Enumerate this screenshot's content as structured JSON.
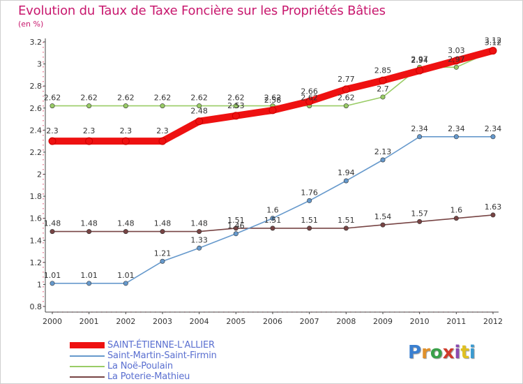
{
  "title": "Evolution du Taux de Taxe Foncière sur les Propriétés Bâties",
  "unit_label": "(en %)",
  "logo": {
    "text": "Proxiti",
    "colors": [
      "#3a7fd0",
      "#e0902a",
      "#3aa04a",
      "#d03a2a",
      "#8a4ab0",
      "#e0c020",
      "#3a9ad0"
    ]
  },
  "colors": {
    "title": "#c8186e",
    "legend_text": "#5a6fd0",
    "axis": "#444444",
    "grid_dots": "#e05070"
  },
  "chart_data": {
    "type": "line",
    "title": "Evolution du Taux de Taxe Foncière sur les Propriétés Bâties",
    "ylabel": "(en %)",
    "xlabel": "",
    "x": [
      "2000",
      "2001",
      "2002",
      "2003",
      "2004",
      "2005",
      "2006",
      "2007",
      "2008",
      "2009",
      "2010",
      "2011",
      "2012"
    ],
    "ylim": [
      0.8,
      3.2
    ],
    "yticks": [
      "0.8",
      "1",
      "1.2",
      "1.4",
      "1.6",
      "1.8",
      "2",
      "2.2",
      "2.4",
      "2.6",
      "2.8",
      "3",
      "3.2"
    ],
    "legend_position": "bottom-left",
    "series": [
      {
        "name": "SAINT-ÉTIENNE-L'ALLIER",
        "color": "#ee1111",
        "values": [
          2.3,
          2.3,
          2.3,
          2.3,
          2.48,
          2.53,
          2.58,
          2.66,
          2.77,
          2.85,
          2.94,
          3.03,
          3.12
        ],
        "labels": [
          "2.3",
          "2.3",
          "2.3",
          "2.3",
          "2.48",
          "2.53",
          "2.58",
          "2.66",
          "2.77",
          "2.85",
          "2.94",
          "3.03",
          "3.12"
        ]
      },
      {
        "name": "Saint-Martin-Saint-Firmin",
        "color": "#6699cc",
        "values": [
          1.01,
          1.01,
          1.01,
          1.21,
          1.33,
          1.46,
          1.6,
          1.76,
          1.94,
          2.13,
          2.34,
          2.34,
          2.34
        ],
        "labels": [
          "1.01",
          "1.01",
          "1.01",
          "1.21",
          "1.33",
          "1.46",
          "1.6",
          "1.76",
          "1.94",
          "2.13",
          "2.34",
          "2.34",
          "2.34"
        ]
      },
      {
        "name": "La Noë-Poulain",
        "color": "#99cc66",
        "values": [
          2.62,
          2.62,
          2.62,
          2.62,
          2.62,
          2.62,
          2.62,
          2.62,
          2.62,
          2.7,
          2.97,
          2.97,
          3.12
        ],
        "labels": [
          "2.62",
          "2.62",
          "2.62",
          "2.62",
          "2.62",
          "2.62",
          "2.62",
          "2.62",
          "2.62",
          "2.7",
          "2.97",
          "2.97",
          "3.12"
        ]
      },
      {
        "name": "La Poterie-Mathieu",
        "color": "#774444",
        "values": [
          1.48,
          1.48,
          1.48,
          1.48,
          1.48,
          1.51,
          1.51,
          1.51,
          1.51,
          1.54,
          1.57,
          1.6,
          1.63
        ],
        "labels": [
          "1.48",
          "1.48",
          "1.48",
          "1.48",
          "1.48",
          "1.51",
          "1.51",
          "1.51",
          "1.51",
          "1.54",
          "1.57",
          "1.6",
          "1.63"
        ]
      }
    ]
  }
}
